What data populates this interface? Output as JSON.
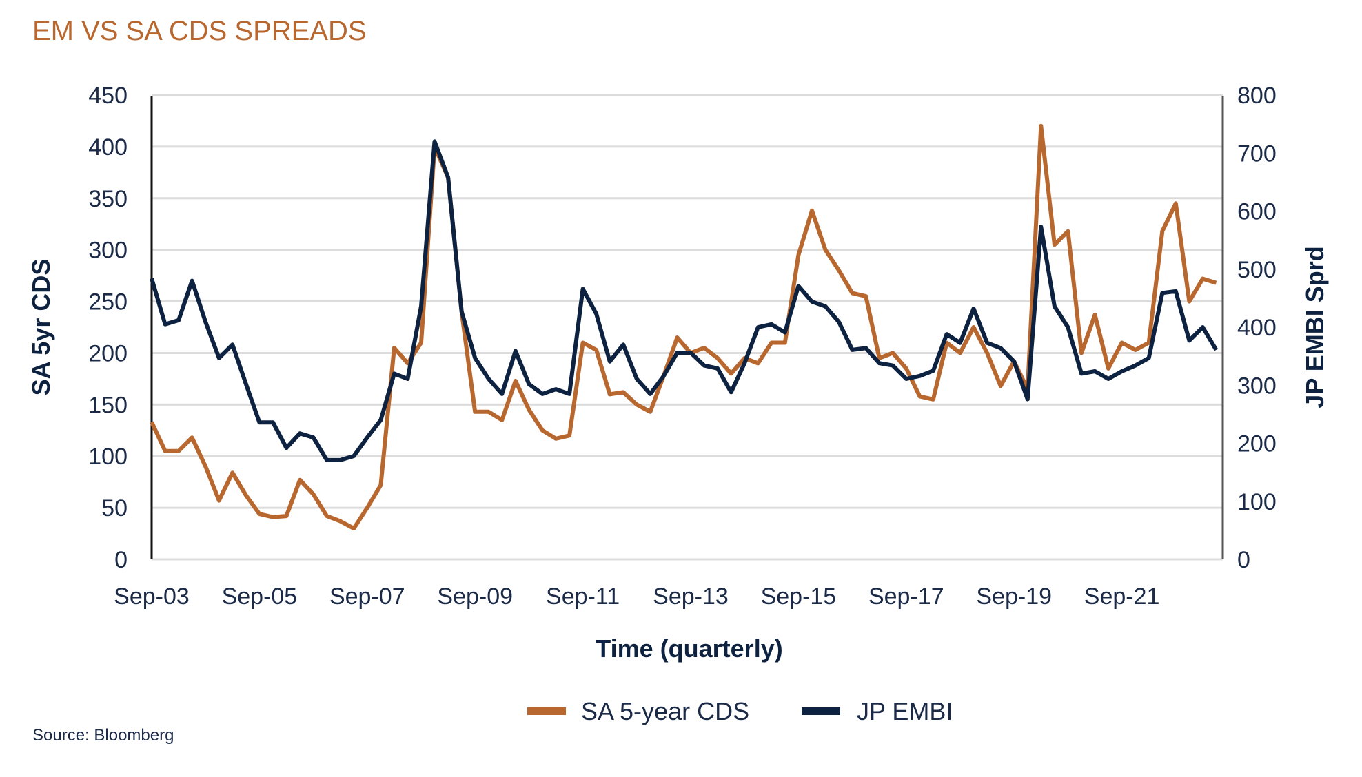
{
  "chart_data": {
    "type": "line",
    "title": "EM VS SA CDS SPREADS",
    "xlabel": "Time (quarterly)",
    "ylabel": "SA 5yr CDS",
    "y2label": "JP EMBI Sprd",
    "ylim": [
      0,
      450
    ],
    "y2lim": [
      0,
      800
    ],
    "yticks": [
      0,
      50,
      100,
      150,
      200,
      250,
      300,
      350,
      400,
      450
    ],
    "y2ticks": [
      0,
      100,
      200,
      300,
      400,
      500,
      600,
      700,
      800
    ],
    "xtick_labels": [
      "Sep-03",
      "Sep-05",
      "Sep-07",
      "Sep-09",
      "Sep-11",
      "Sep-13",
      "Sep-15",
      "Sep-17",
      "Sep-19",
      "Sep-21"
    ],
    "grid": true,
    "legend_position": "bottom",
    "source": "Source: Bloomberg",
    "categories": [
      "Sep-03",
      "Dec-03",
      "Mar-04",
      "Jun-04",
      "Sep-04",
      "Dec-04",
      "Mar-05",
      "Jun-05",
      "Sep-05",
      "Dec-05",
      "Mar-06",
      "Jun-06",
      "Sep-06",
      "Dec-06",
      "Mar-07",
      "Jun-07",
      "Sep-07",
      "Dec-07",
      "Mar-08",
      "Jun-08",
      "Sep-08",
      "Dec-08",
      "Mar-09",
      "Jun-09",
      "Sep-09",
      "Dec-09",
      "Mar-10",
      "Jun-10",
      "Sep-10",
      "Dec-10",
      "Mar-11",
      "Jun-11",
      "Sep-11",
      "Dec-11",
      "Mar-12",
      "Jun-12",
      "Sep-12",
      "Dec-12",
      "Mar-13",
      "Jun-13",
      "Sep-13",
      "Dec-13",
      "Mar-14",
      "Jun-14",
      "Sep-14",
      "Dec-14",
      "Mar-15",
      "Jun-15",
      "Sep-15",
      "Dec-15",
      "Mar-16",
      "Jun-16",
      "Sep-16",
      "Dec-16",
      "Mar-17",
      "Jun-17",
      "Sep-17",
      "Dec-17",
      "Mar-18",
      "Jun-18",
      "Sep-18",
      "Dec-18",
      "Mar-19",
      "Jun-19",
      "Sep-19",
      "Dec-19",
      "Mar-20",
      "Jun-20",
      "Sep-20",
      "Dec-20",
      "Mar-21",
      "Jun-21",
      "Sep-21",
      "Dec-21",
      "Mar-22",
      "Jun-22",
      "Sep-22",
      "Dec-22",
      "Mar-23",
      "Jun-23"
    ],
    "series": [
      {
        "name": "SA 5-year CDS",
        "axis": "left",
        "color": "#b8672f",
        "values": [
          133,
          105,
          105,
          118,
          90,
          57,
          84,
          62,
          44,
          41,
          42,
          77,
          63,
          42,
          37,
          30,
          50,
          72,
          205,
          190,
          210,
          400,
          370,
          240,
          143,
          143,
          135,
          173,
          145,
          125,
          117,
          120,
          210,
          203,
          160,
          162,
          150,
          143,
          178,
          215,
          200,
          205,
          195,
          180,
          195,
          190,
          210,
          210,
          295,
          338,
          300,
          280,
          258,
          255,
          195,
          200,
          185,
          158,
          155,
          210,
          200,
          225,
          200,
          168,
          192,
          165,
          420,
          305,
          318,
          200,
          237,
          185,
          210,
          203,
          210,
          318,
          345,
          250,
          272,
          268
        ]
      },
      {
        "name": "JP EMBI",
        "axis": "right",
        "color": "#0d2240",
        "values": [
          484,
          405,
          412,
          480,
          409,
          347,
          370,
          302,
          236,
          236,
          192,
          217,
          210,
          171,
          171,
          178,
          210,
          240,
          320,
          311,
          436,
          720,
          658,
          427,
          347,
          311,
          285,
          359,
          302,
          285,
          293,
          285,
          466,
          423,
          341,
          370,
          311,
          285,
          316,
          356,
          356,
          334,
          329,
          288,
          338,
          400,
          405,
          391,
          471,
          444,
          436,
          409,
          361,
          364,
          338,
          334,
          311,
          316,
          325,
          388,
          373,
          432,
          373,
          364,
          341,
          276,
          573,
          436,
          400,
          320,
          324,
          311,
          324,
          334,
          347,
          459,
          462,
          377,
          400,
          361
        ]
      }
    ]
  }
}
